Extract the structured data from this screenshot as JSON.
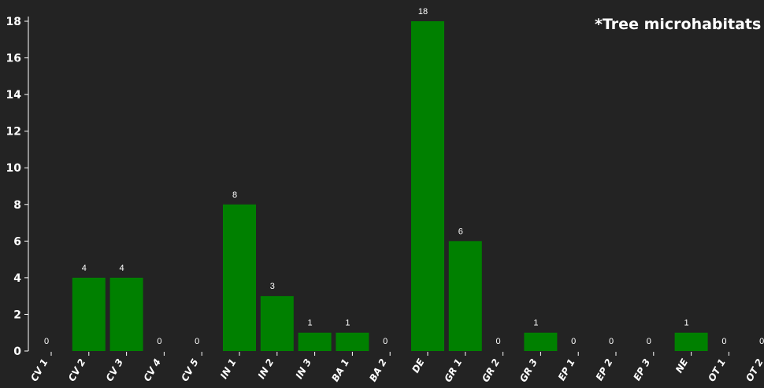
{
  "chart_data": {
    "type": "bar",
    "categories": [
      "CV 1",
      "CV 2",
      "CV 3",
      "CV 4",
      "CV 5",
      "IN 1",
      "IN 2",
      "IN 3",
      "BA 1",
      "BA 2",
      "DE",
      "GR 1",
      "GR 2",
      "GR 3",
      "EP 1",
      "EP 2",
      "EP 3",
      "NE",
      "OT 1",
      "OT 2"
    ],
    "values": [
      0,
      4,
      4,
      0,
      0,
      8,
      3,
      1,
      1,
      0,
      18,
      6,
      0,
      1,
      0,
      0,
      0,
      1,
      0,
      0
    ],
    "title": "",
    "annotation": "*Tree microhabitats",
    "xlabel": "",
    "ylabel": "",
    "ylim": [
      0,
      18
    ],
    "yticks": [
      0,
      2,
      4,
      6,
      8,
      10,
      12,
      14,
      16,
      18
    ],
    "grid": false,
    "data_labels": true
  },
  "colors": {
    "background": "#232323",
    "bar": "#008000",
    "text": "#ffffff",
    "axis": "#ffffff"
  }
}
